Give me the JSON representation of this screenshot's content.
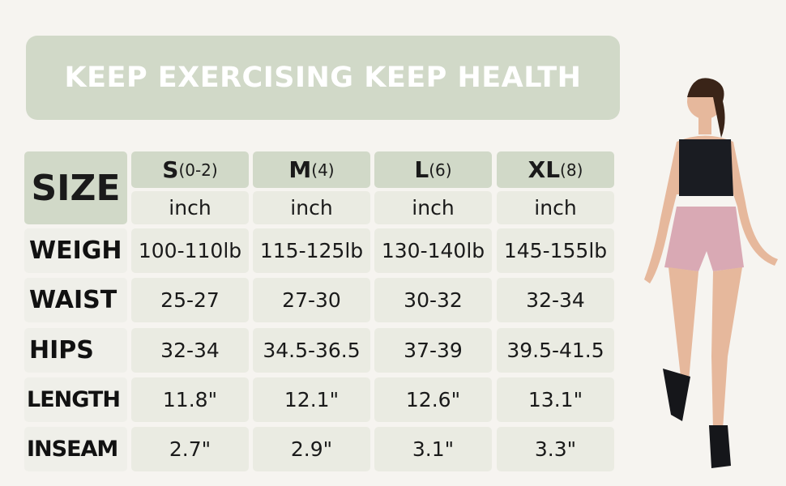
{
  "banner": {
    "title": "KEEP EXERCISING KEEP HEALTH"
  },
  "table": {
    "corner": "SIZE",
    "sizes": [
      {
        "size": "S",
        "range": "(0-2)",
        "unit": "inch"
      },
      {
        "size": "M",
        "range": "(4)",
        "unit": "inch"
      },
      {
        "size": "L",
        "range": "(6)",
        "unit": "inch"
      },
      {
        "size": "XL",
        "range": "(8)",
        "unit": "inch"
      }
    ],
    "rows": [
      {
        "label": "WEIGH",
        "values": [
          "100-110lb",
          "115-125lb",
          "130-140lb",
          "145-155lb"
        ]
      },
      {
        "label": "WAIST",
        "values": [
          "25-27",
          "27-30",
          "30-32",
          "32-34"
        ]
      },
      {
        "label": "HIPS",
        "values": [
          "32-34",
          "34.5-36.5",
          "37-39",
          "39.5-41.5"
        ]
      },
      {
        "label": "LENGTH",
        "values": [
          "11.8\"",
          "12.1\"",
          "12.6\"",
          "13.1\""
        ]
      },
      {
        "label": "INSEAM",
        "values": [
          "2.7\"",
          "2.9\"",
          "3.1\"",
          "3.3\""
        ]
      }
    ]
  },
  "colors": {
    "header": "#d1d9c8",
    "background": "#f6f4f0",
    "shorts": "#d9a9b4",
    "top": "#1a1c22"
  }
}
